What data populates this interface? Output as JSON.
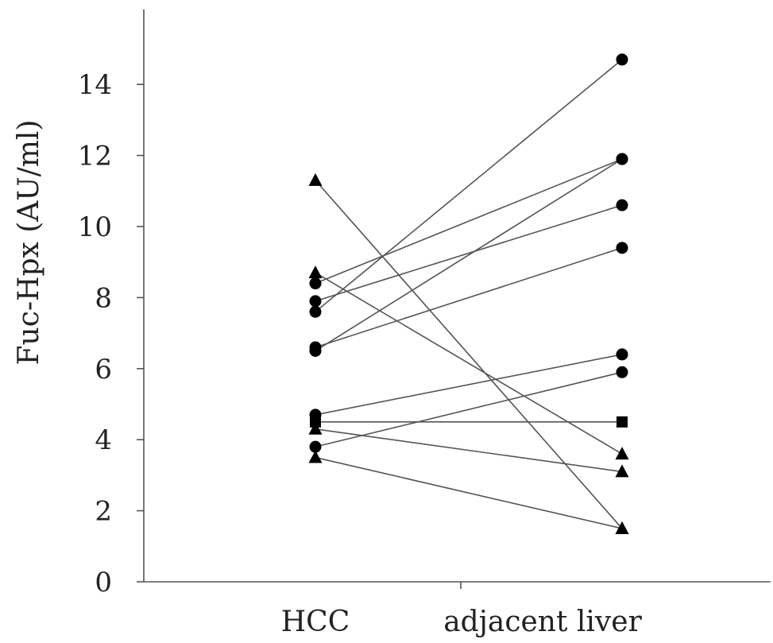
{
  "chart_data": {
    "type": "line",
    "title": "",
    "xlabel": "",
    "ylabel": "Fuc-Hpx (AU/ml)",
    "categories": [
      "HCC",
      "adjacent liver"
    ],
    "ylim": [
      0,
      16
    ],
    "yticks": [
      0,
      2,
      4,
      6,
      8,
      10,
      12,
      14
    ],
    "grid": false,
    "legend": "none",
    "pairs": [
      {
        "marker": "circle",
        "values": [
          7.6,
          14.7
        ]
      },
      {
        "marker": "circle",
        "values": [
          8.4,
          11.9
        ]
      },
      {
        "marker": "circle",
        "values": [
          6.5,
          11.9
        ]
      },
      {
        "marker": "circle",
        "values": [
          7.9,
          10.6
        ]
      },
      {
        "marker": "circle",
        "values": [
          6.6,
          9.4
        ]
      },
      {
        "marker": "circle",
        "values": [
          4.7,
          6.4
        ]
      },
      {
        "marker": "circle",
        "values": [
          3.8,
          5.9
        ]
      },
      {
        "marker": "square",
        "values": [
          4.5,
          4.5
        ]
      },
      {
        "marker": "triangle",
        "values": [
          8.7,
          3.6
        ]
      },
      {
        "marker": "triangle",
        "values": [
          4.3,
          3.1
        ]
      },
      {
        "marker": "triangle",
        "values": [
          11.3,
          1.5
        ]
      },
      {
        "marker": "triangle",
        "values": [
          3.5,
          1.5
        ]
      }
    ],
    "colors": {
      "line": "#555555",
      "marker": "#000000",
      "axis": "#555555"
    }
  }
}
